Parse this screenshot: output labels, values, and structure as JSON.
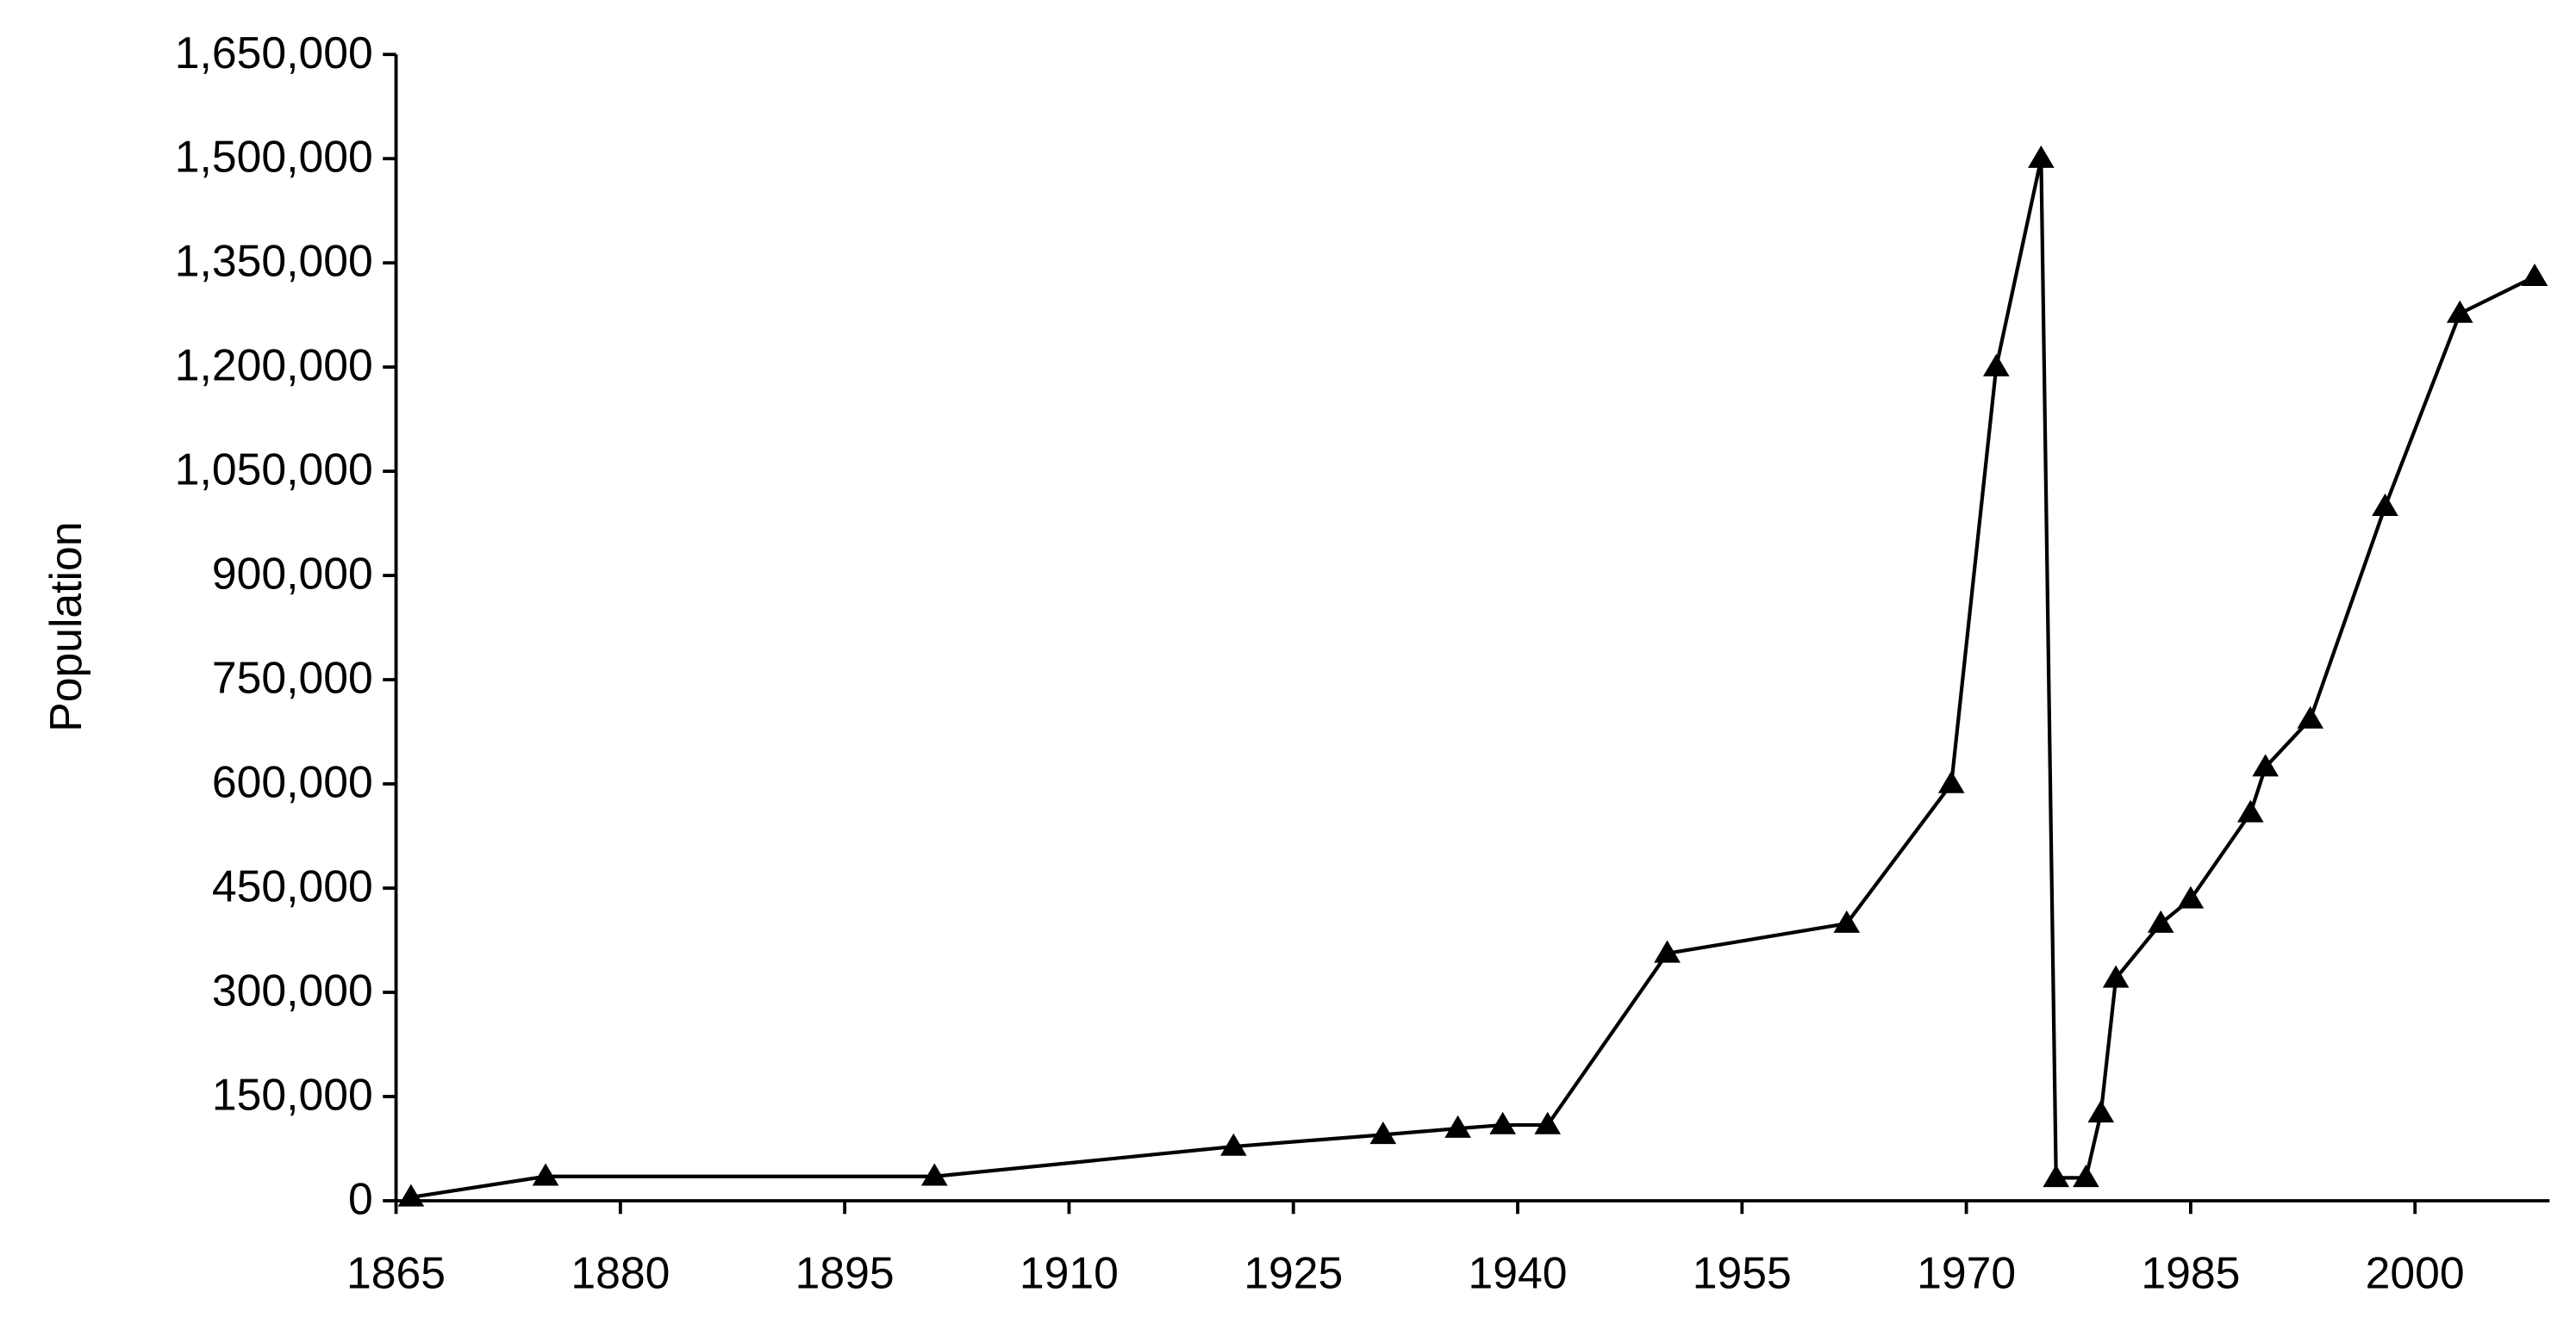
{
  "chart_data": {
    "type": "line",
    "y_label": "Population",
    "x": [
      1866,
      1875,
      1901,
      1921,
      1931,
      1936,
      1939,
      1942,
      1950,
      1962,
      1969,
      1972,
      1975,
      1976,
      1978,
      1979,
      1980,
      1983,
      1985,
      1989,
      1990,
      1993,
      1998,
      2003,
      2008
    ],
    "series": [
      {
        "color": "#000000",
        "values": [
          5000,
          35000,
          35000,
          78000,
          95000,
          104000,
          109000,
          109000,
          356000,
          399000,
          600000,
          1200000,
          1500000,
          33000,
          33000,
          126000,
          320000,
          399000,
          434000,
          558000,
          624000,
          693000,
          999000,
          1277000,
          1330000
        ]
      }
    ],
    "xlim": [
      1865,
      2009
    ],
    "xticks": [
      1865,
      1880,
      1895,
      1910,
      1925,
      1940,
      1955,
      1970,
      1985,
      2000
    ],
    "ylim": [
      0,
      1650000
    ],
    "yticks": [
      {
        "value": 0,
        "label": "0"
      },
      {
        "value": 150000,
        "label": "150,000"
      },
      {
        "value": 300000,
        "label": "300,000"
      },
      {
        "value": 450000,
        "label": "450,000"
      },
      {
        "value": 600000,
        "label": "600,000"
      },
      {
        "value": 750000,
        "label": "750,000"
      },
      {
        "value": 900000,
        "label": "900,000"
      },
      {
        "value": 1050000,
        "label": "1,050,000"
      },
      {
        "value": 1200000,
        "label": "1,200,000"
      },
      {
        "value": 1350000,
        "label": "1,350,000"
      },
      {
        "value": 1500000,
        "label": "1,500,000"
      },
      {
        "value": 1650000,
        "label": "1,650,000"
      }
    ],
    "grid": false,
    "marker": "triangle"
  }
}
